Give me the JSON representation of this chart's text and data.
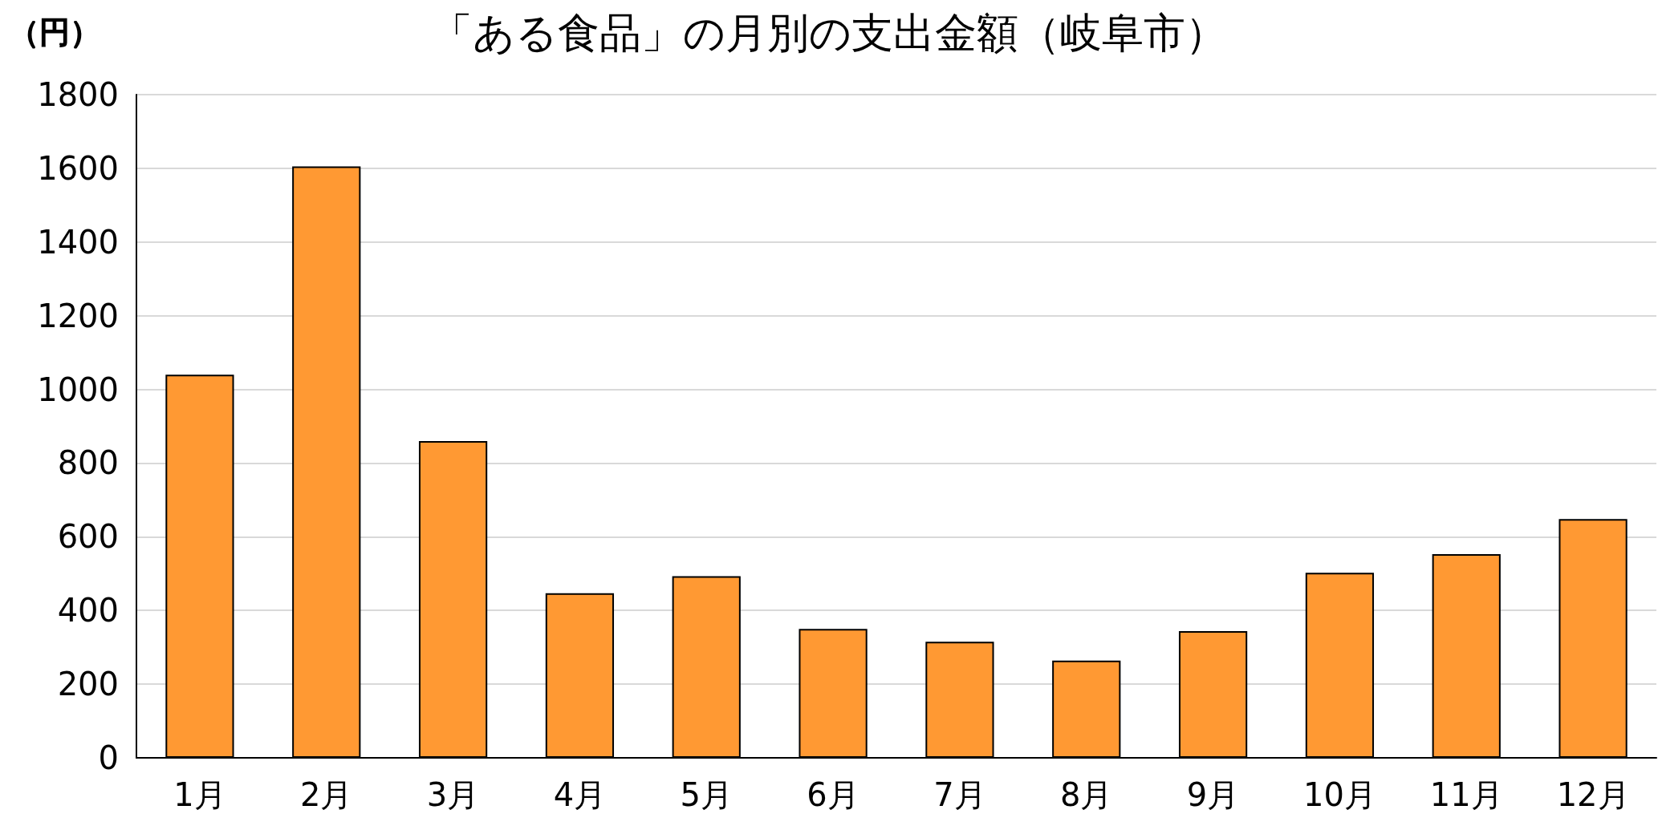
{
  "chart_data": {
    "type": "bar",
    "title": "「ある食品」の月別の支出金額（岐阜市）",
    "ylabel": "（円）",
    "categories": [
      "1月",
      "2月",
      "3月",
      "4月",
      "5月",
      "6月",
      "7月",
      "8月",
      "9月",
      "10月",
      "11月",
      "12月"
    ],
    "values": [
      1040,
      1605,
      860,
      447,
      493,
      350,
      315,
      264,
      344,
      502,
      553,
      648
    ],
    "color": "#ff9933",
    "ylim": [
      0,
      1800
    ],
    "yticks": [
      0,
      200,
      400,
      600,
      800,
      1000,
      1200,
      1400,
      1600,
      1800
    ],
    "grid": "y"
  }
}
